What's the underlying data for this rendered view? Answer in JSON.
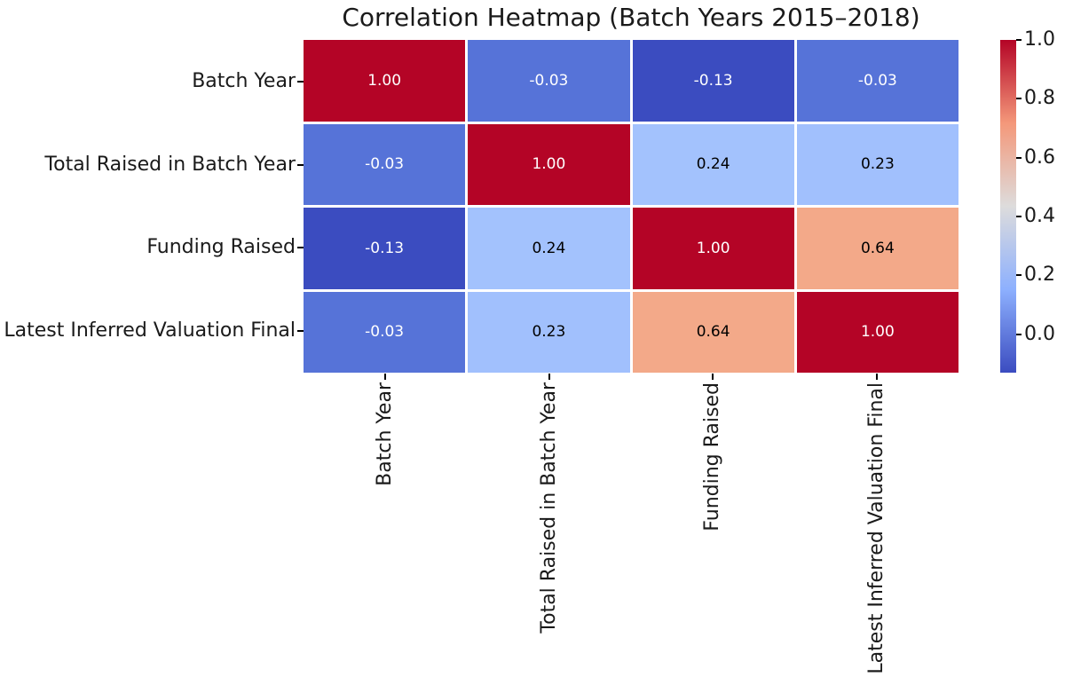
{
  "chart_data": {
    "type": "heatmap",
    "title": "Correlation Heatmap (Batch Years 2015–2018)",
    "categories": [
      "Batch Year",
      "Total Raised in Batch Year",
      "Funding Raised",
      "Latest Inferred Valuation Final"
    ],
    "matrix": [
      [
        1.0,
        -0.03,
        -0.13,
        -0.03
      ],
      [
        -0.03,
        1.0,
        0.24,
        0.23
      ],
      [
        -0.13,
        0.24,
        1.0,
        0.64
      ],
      [
        -0.03,
        0.23,
        0.64,
        1.0
      ]
    ],
    "value_format_decimals": 2,
    "colormap": "coolwarm",
    "vmin": -0.13,
    "vmax": 1.0,
    "colorbar": {
      "position": "right",
      "tick_labels": [
        "1.0",
        "0.8",
        "0.6",
        "0.4",
        "0.2",
        "0.0"
      ],
      "tick_values": [
        1.0,
        0.8,
        0.6,
        0.4,
        0.2,
        0.0
      ]
    },
    "colormap_stops": [
      {
        "pos": 0,
        "color": "#3b4cc0"
      },
      {
        "pos": 25,
        "color": "#8db0fe"
      },
      {
        "pos": 50,
        "color": "#dddcdc"
      },
      {
        "pos": 75,
        "color": "#f4987a"
      },
      {
        "pos": 100,
        "color": "#b40426"
      }
    ],
    "cell_colors": [
      [
        "#b40426",
        "#5673d8",
        "#3b4cc0",
        "#5673d8"
      ],
      [
        "#5673d8",
        "#b40426",
        "#a3c2fd",
        "#a1c0fd"
      ],
      [
        "#3b4cc0",
        "#a3c2fd",
        "#b40426",
        "#f3a989"
      ],
      [
        "#5673d8",
        "#a1c0fd",
        "#f3a989",
        "#b40426"
      ]
    ],
    "cell_text_colors": [
      [
        "#ffffff",
        "#ffffff",
        "#ffffff",
        "#ffffff"
      ],
      [
        "#ffffff",
        "#ffffff",
        "#000000",
        "#000000"
      ],
      [
        "#ffffff",
        "#000000",
        "#ffffff",
        "#000000"
      ],
      [
        "#ffffff",
        "#000000",
        "#000000",
        "#ffffff"
      ]
    ],
    "grid_line_color": "#ffffff",
    "axis_tick_color": "#000000",
    "text_color": "#1a1a1a"
  }
}
